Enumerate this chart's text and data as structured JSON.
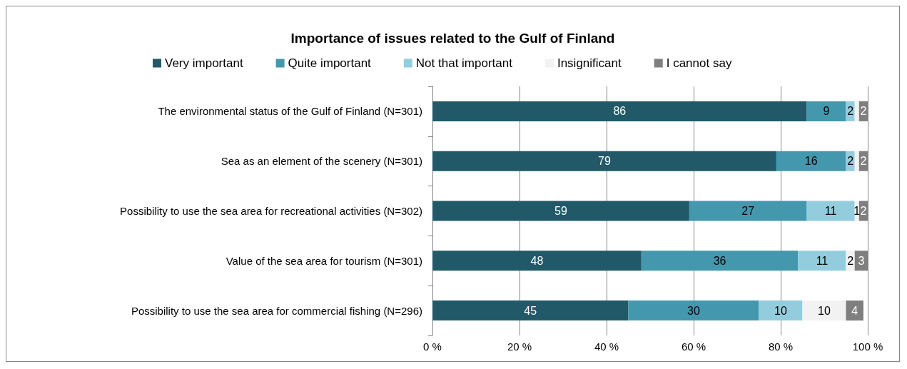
{
  "chart_data": {
    "type": "bar",
    "orientation": "horizontal",
    "stacked": true,
    "title": "Importance of issues related to the Gulf of Finland",
    "categories": [
      "The environmental status of the Gulf of Finland (N=301)",
      "Sea as an element of the scenery (N=301)",
      "Possibility to use the sea area for recreational activities (N=302)",
      "Value of the sea area for tourism (N=301)",
      "Possibility to use the sea area for commercial fishing (N=296)"
    ],
    "series": [
      {
        "name": "Very important",
        "color": "#215968",
        "values": [
          86,
          79,
          59,
          48,
          45
        ],
        "value_labels": [
          "86",
          "79",
          "59",
          "48",
          "45"
        ]
      },
      {
        "name": "Quite important",
        "color": "#4398ae",
        "values": [
          9,
          16,
          27,
          36,
          30
        ],
        "value_labels": [
          "9",
          "16",
          "27",
          "36",
          "30"
        ]
      },
      {
        "name": "Not that important",
        "color": "#93cddd",
        "values": [
          2,
          2,
          11,
          11,
          10
        ],
        "value_labels": [
          "2",
          "2",
          "11",
          "11",
          "10"
        ]
      },
      {
        "name": "Insignificant",
        "color": "#f2f2f2",
        "values": [
          1,
          1,
          1,
          2,
          10
        ],
        "value_labels": [
          null,
          null,
          "1",
          "2",
          "10"
        ]
      },
      {
        "name": "I cannot say",
        "color": "#7f7f7f",
        "values": [
          2,
          2,
          2,
          3,
          4
        ],
        "value_labels": [
          "2",
          "2",
          "2",
          "3",
          "4"
        ]
      }
    ],
    "xlim": [
      0,
      100
    ],
    "xticks": [
      {
        "value": 0,
        "label": "0 %"
      },
      {
        "value": 20,
        "label": "20 %"
      },
      {
        "value": 40,
        "label": "40 %"
      },
      {
        "value": 60,
        "label": "60 %"
      },
      {
        "value": 80,
        "label": "80 %"
      },
      {
        "value": 100,
        "label": "100 %"
      }
    ],
    "grid": "x",
    "legend": "top"
  }
}
